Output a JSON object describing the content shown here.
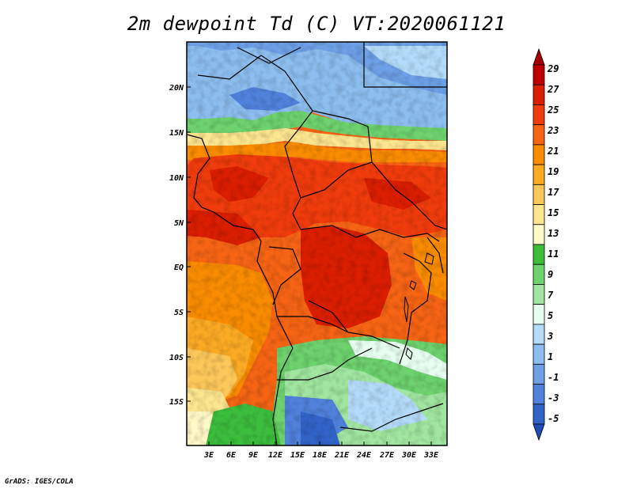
{
  "title": "2m dewpoint Td (C) VT:2020061121",
  "credit": "GrADS: IGES/COLA",
  "map": {
    "lat_labels": [
      "20N",
      "15N",
      "10N",
      "5N",
      "EQ",
      "5S",
      "10S",
      "15S"
    ],
    "lon_labels": [
      "3E",
      "6E",
      "9E",
      "12E",
      "15E",
      "18E",
      "21E",
      "24E",
      "27E",
      "30E",
      "33E"
    ]
  },
  "colorbar": {
    "labels": [
      "29",
      "27",
      "25",
      "23",
      "21",
      "19",
      "17",
      "15",
      "13",
      "11",
      "9",
      "7",
      "5",
      "3",
      "1",
      "-1",
      "-3",
      "-5"
    ],
    "colors": [
      "#a50000",
      "#c00000",
      "#dc1e00",
      "#f03c0c",
      "#f66414",
      "#fa8c00",
      "#fbaa23",
      "#fdc85a",
      "#fde68f",
      "#fff9c8",
      "#3cbe3c",
      "#6ed26e",
      "#a0e6a0",
      "#e6fff0",
      "#b4dcfa",
      "#8cbef0",
      "#6ea0e6",
      "#5082dc",
      "#3264c8",
      "#1e4bb4"
    ]
  }
}
